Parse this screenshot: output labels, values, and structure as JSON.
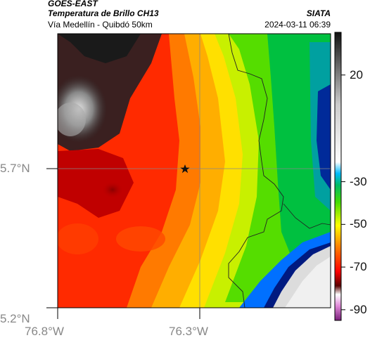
{
  "header": {
    "satellite": "GOES-EAST",
    "product": "Temperatura de Brillo CH13",
    "route": "Vía Medellín - Quibdó 50km",
    "agency": "SIATA",
    "datetime": "2024-03-11 06:39"
  },
  "axes": {
    "lat_labels": [
      "5.7°N",
      "5.2°N"
    ],
    "lon_labels": [
      "76.8°W",
      "76.3°W"
    ]
  },
  "colorbar": {
    "tick_labels": [
      "20",
      "-30",
      "-50",
      "-70",
      "-90"
    ],
    "tick_values": [
      20,
      -30,
      -50,
      -70,
      -90
    ],
    "range": [
      -95,
      40
    ]
  },
  "marker": {
    "icon": "star-icon"
  }
}
